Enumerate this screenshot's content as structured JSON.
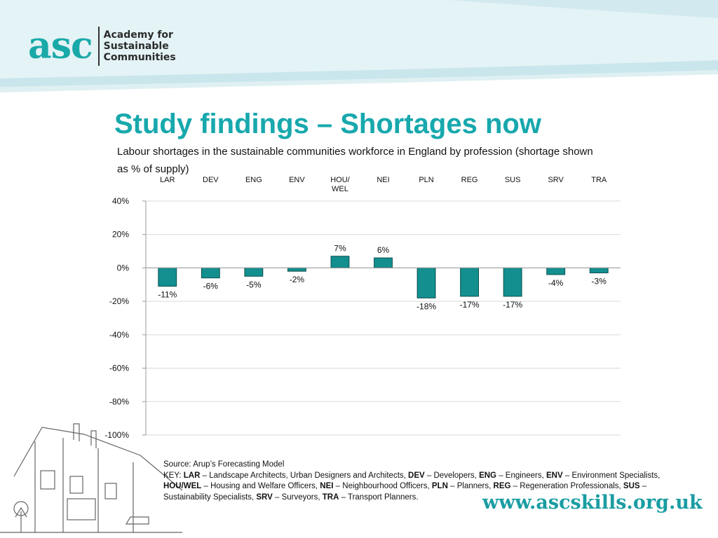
{
  "logo": {
    "mark": "asc",
    "lines": [
      "Academy for",
      "Sustainable",
      "Communities"
    ]
  },
  "title": "Study findings – Shortages now",
  "subtitle": "Labour shortages in the sustainable communities workforce in England by profession (shortage shown as % of supply)",
  "chart_data": {
    "type": "bar",
    "categories": [
      "LAR",
      "DEV",
      "ENG",
      "ENV",
      "HOU/WEL",
      "NEI",
      "PLN",
      "REG",
      "SUS",
      "SRV",
      "TRA"
    ],
    "values": [
      -11,
      -6,
      -5,
      -2,
      7,
      6,
      -18,
      -17,
      -17,
      -4,
      -3
    ],
    "data_labels": [
      "-11%",
      "-6%",
      "-5%",
      "-2%",
      "7%",
      "6%",
      "-18%",
      "-17%",
      "-17%",
      "-4%",
      "-3%"
    ],
    "yticks": [
      40,
      20,
      0,
      -20,
      -40,
      -60,
      -80,
      -100
    ],
    "ytick_labels": [
      "40%",
      "20%",
      "0%",
      "-20%",
      "-40%",
      "-60%",
      "-80%",
      "-100%"
    ],
    "ylim": [
      -100,
      40
    ],
    "grid": true,
    "category_axis_position": "top",
    "colors": {
      "bar": "#138f8f",
      "bar_edge": "#0b4f4f",
      "grid": "#d9d9d9"
    }
  },
  "source_text": "Source: Arup’s Forecasting Model",
  "key": [
    {
      "abbr": "LAR",
      "desc": "Landscape Architects, Urban Designers and Architects"
    },
    {
      "abbr": "DEV",
      "desc": "Developers"
    },
    {
      "abbr": "ENG",
      "desc": "Engineers"
    },
    {
      "abbr": "ENV",
      "desc": "Environment Specialists"
    },
    {
      "abbr": "HOU/WEL",
      "desc": "Housing and Welfare Officers"
    },
    {
      "abbr": "NEI",
      "desc": "Neighbourhood Officers"
    },
    {
      "abbr": "PLN",
      "desc": "Planners"
    },
    {
      "abbr": "REG",
      "desc": "Regeneration Professionals"
    },
    {
      "abbr": "SUS",
      "desc": "Sustainability Specialists"
    },
    {
      "abbr": "SRV",
      "desc": "Surveyors"
    },
    {
      "abbr": "TRA",
      "desc": "Transport Planners"
    }
  ],
  "key_label": "KEY:",
  "website": "www.ascskills.org.uk",
  "colors": {
    "brand": "#17a8ad",
    "band_light": "#e4f3f6",
    "band_mid": "#c9e6ec"
  }
}
